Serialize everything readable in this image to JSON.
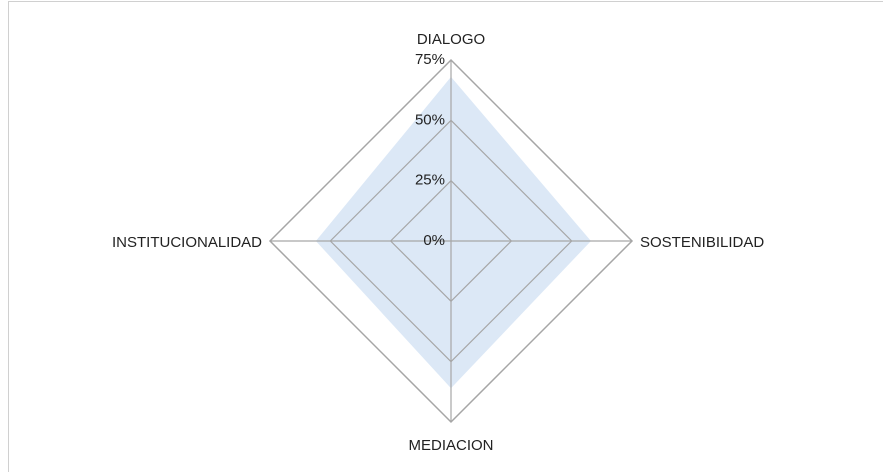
{
  "chart_data": {
    "type": "radar",
    "categories": [
      "DIALOGO",
      "SOSTENIBILIDAD",
      "MEDIACION",
      "INSTITUCIONALIDAD"
    ],
    "values": [
      68,
      58,
      61,
      56
    ],
    "color": "#dce8f6",
    "ylim": [
      0,
      75
    ],
    "yticks": [
      {
        "value": 0,
        "label": "0%"
      },
      {
        "value": 25,
        "label": "25%"
      },
      {
        "value": 50,
        "label": "50%"
      },
      {
        "value": 75,
        "label": "75%"
      }
    ],
    "grid": true
  }
}
